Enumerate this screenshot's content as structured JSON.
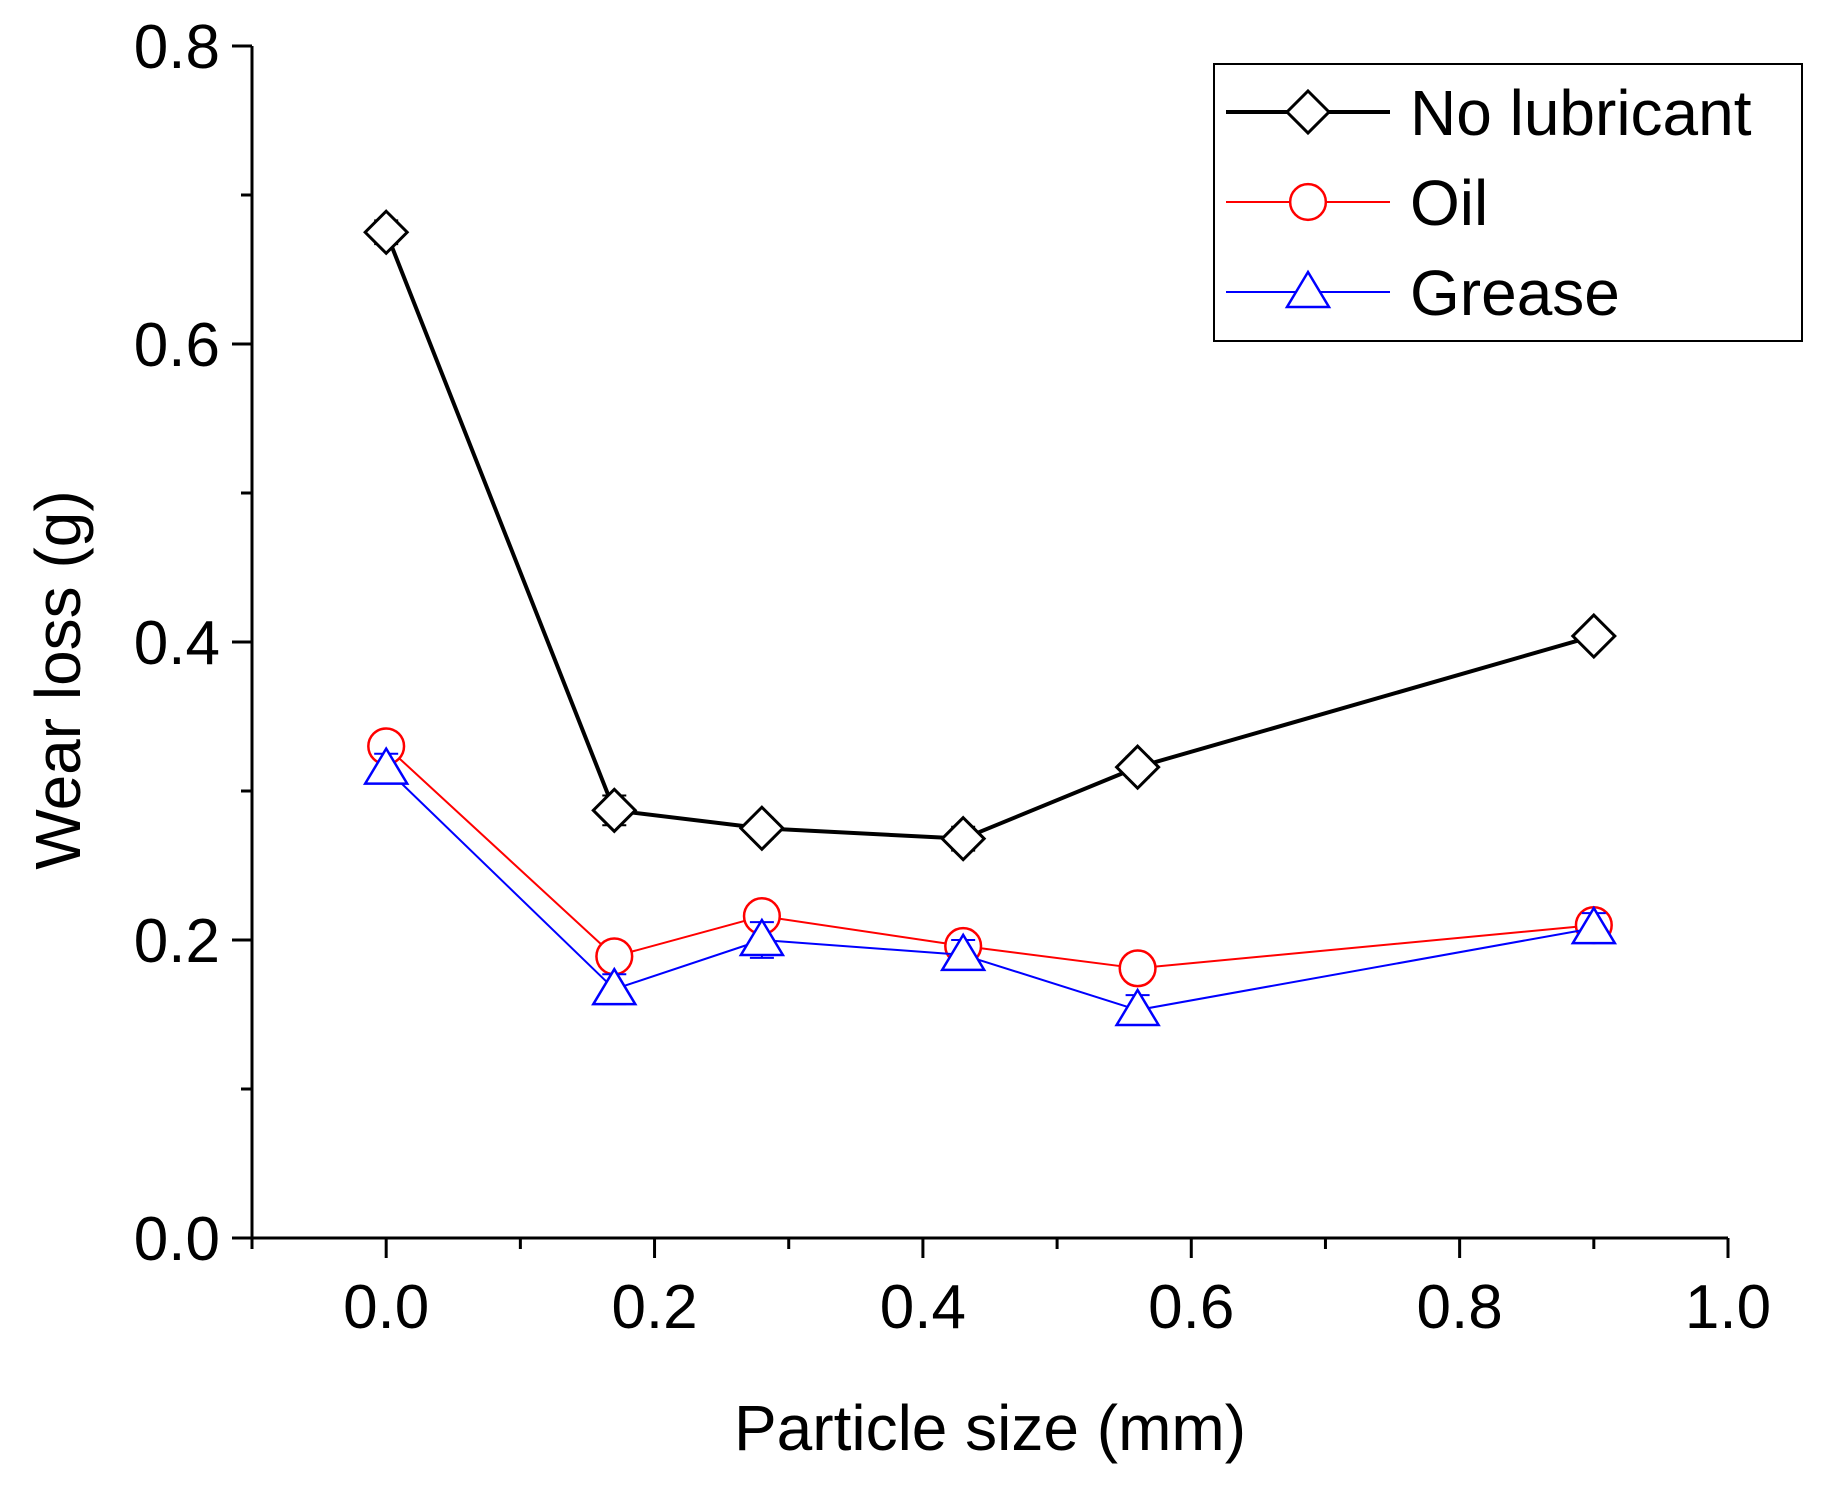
{
  "chart_data": {
    "type": "line",
    "title": "",
    "xlabel": "Particle size (mm)",
    "ylabel": "Wear loss (g)",
    "xlim": [
      -0.1,
      1.0
    ],
    "ylim": [
      0.0,
      0.8
    ],
    "x_ticks": [
      "0.0",
      "0.2",
      "0.4",
      "0.6",
      "0.8",
      "1.0"
    ],
    "y_ticks": [
      "0.0",
      "0.2",
      "0.4",
      "0.6",
      "0.8"
    ],
    "grid": false,
    "legend_position": "top-right",
    "x": [
      0.0,
      0.17,
      0.28,
      0.43,
      0.56,
      0.9
    ],
    "series": [
      {
        "name": "No lubricant",
        "color": "#000000",
        "marker": "diamond",
        "values": [
          0.675,
          0.287,
          0.275,
          0.268,
          0.316,
          0.404
        ],
        "errors": [
          0.008,
          0.01,
          0.007,
          0.008,
          0.007,
          0.006
        ]
      },
      {
        "name": "Oil",
        "color": "#ff0000",
        "marker": "circle",
        "values": [
          0.33,
          0.189,
          0.216,
          0.196,
          0.181,
          0.21
        ],
        "errors": [
          0.008,
          0.007,
          0.007,
          0.008,
          0.007,
          0.008
        ]
      },
      {
        "name": "Grease",
        "color": "#0000ff",
        "marker": "triangle",
        "values": [
          0.315,
          0.167,
          0.2,
          0.19,
          0.153,
          0.208
        ],
        "errors": [
          0.01,
          0.01,
          0.012,
          0.01,
          0.01,
          0.01
        ]
      }
    ]
  }
}
